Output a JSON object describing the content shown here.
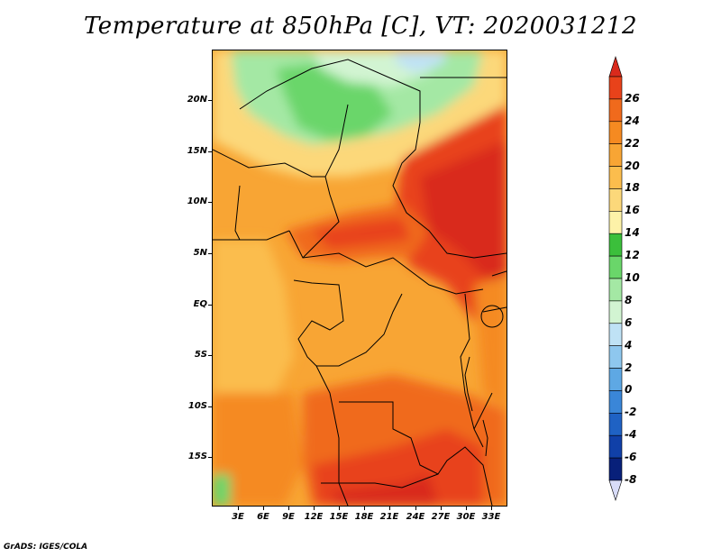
{
  "title": "Temperature at 850hPa [C], VT: 2020031212",
  "footer": "GrADS: IGES/COLA",
  "map": {
    "variable": "Temperature at 850hPa",
    "units": "C",
    "valid_time": "2020031212",
    "lat_labels": [
      "20N",
      "15N",
      "10N",
      "5N",
      "EQ",
      "5S",
      "10S",
      "15S"
    ],
    "lon_labels": [
      "3E",
      "6E",
      "9E",
      "12E",
      "15E",
      "18E",
      "21E",
      "24E",
      "27E",
      "30E",
      "33E"
    ]
  },
  "colorbar": {
    "labels": [
      "26",
      "24",
      "22",
      "20",
      "18",
      "16",
      "14",
      "12",
      "10",
      "8",
      "6",
      "4",
      "2",
      "0",
      "-2",
      "-4",
      "-6",
      "-8"
    ],
    "colors_top_to_bottom": [
      "#d92a1c",
      "#e8421a",
      "#f06a1c",
      "#f58a21",
      "#f8a534",
      "#fbbd4d",
      "#fcd87a",
      "#fdf2a8",
      "#3bbf3b",
      "#6ad66a",
      "#a4e8a4",
      "#d2f4d2",
      "#bfe2f5",
      "#8ec7ee",
      "#5ea8e4",
      "#3a86d8",
      "#1f62c4",
      "#1040a8",
      "#08207a",
      "#d8dcf8"
    ]
  }
}
